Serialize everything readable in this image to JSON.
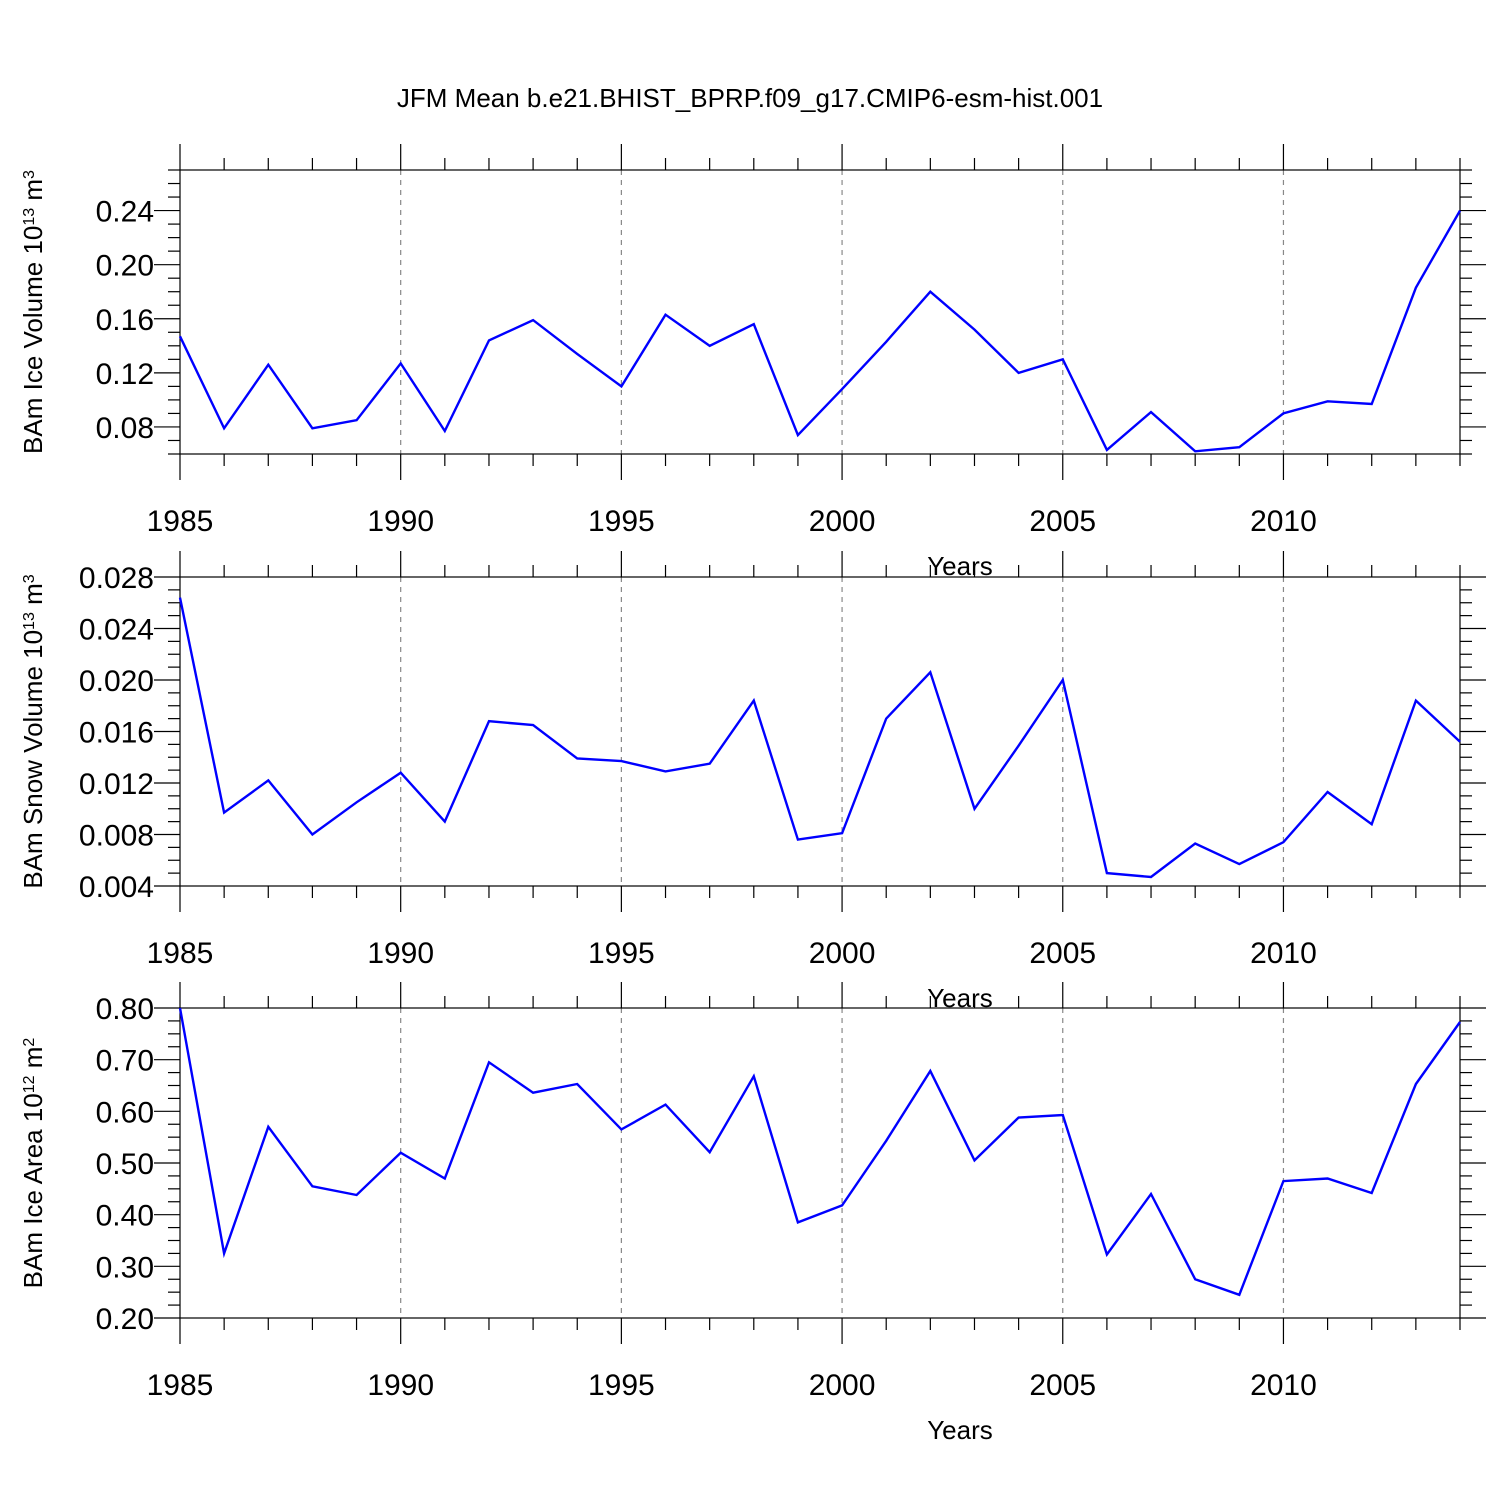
{
  "title": "JFM Mean b.e21.BHIST_BPRP.f09_g17.CMIP6-esm-hist.001",
  "colors": {
    "line": "#0000ff",
    "axis": "#000000",
    "grid": "#888888"
  },
  "chart_data": [
    {
      "type": "line",
      "title": "",
      "xlabel": "Years",
      "ylabel": {
        "pre": "BAm Ice Volume 10",
        "exp": "13",
        "mid": " m",
        "unit_exp": "3"
      },
      "xlim": [
        1985,
        2014
      ],
      "ylim": [
        0.06,
        0.27
      ],
      "xticks": [
        1985,
        1990,
        1995,
        2000,
        2005,
        2010
      ],
      "xtick_labels": [
        "1985",
        "1990",
        "1995",
        "2000",
        "2005",
        "2010"
      ],
      "yticks": [
        0.08,
        0.12,
        0.16,
        0.2,
        0.24
      ],
      "ytick_labels": [
        "0.08",
        "0.12",
        "0.16",
        "0.20",
        "0.24"
      ],
      "x": [
        1985,
        1986,
        1987,
        1988,
        1989,
        1990,
        1991,
        1992,
        1993,
        1994,
        1995,
        1996,
        1997,
        1998,
        1999,
        2000,
        2001,
        2002,
        2003,
        2004,
        2005,
        2006,
        2007,
        2008,
        2009,
        2010,
        2011,
        2012,
        2013,
        2014
      ],
      "series": [
        {
          "name": "BAm Ice Volume",
          "values": [
            0.147,
            0.079,
            0.126,
            0.079,
            0.085,
            0.127,
            0.077,
            0.144,
            0.159,
            0.134,
            0.11,
            0.163,
            0.14,
            0.156,
            0.074,
            0.108,
            0.143,
            0.18,
            0.152,
            0.12,
            0.13,
            0.063,
            0.091,
            0.062,
            0.065,
            0.09,
            0.099,
            0.097,
            0.183,
            0.24
          ]
        }
      ]
    },
    {
      "type": "line",
      "title": "",
      "xlabel": "Years",
      "ylabel": {
        "pre": "BAm Snow Volume 10",
        "exp": "13",
        "mid": " m",
        "unit_exp": "3"
      },
      "xlim": [
        1985,
        2014
      ],
      "ylim": [
        0.004,
        0.028
      ],
      "xticks": [
        1985,
        1990,
        1995,
        2000,
        2005,
        2010
      ],
      "xtick_labels": [
        "1985",
        "1990",
        "1995",
        "2000",
        "2005",
        "2010"
      ],
      "yticks": [
        0.004,
        0.008,
        0.012,
        0.016,
        0.02,
        0.024,
        0.028
      ],
      "ytick_labels": [
        "0.004",
        "0.008",
        "0.012",
        "0.016",
        "0.020",
        "0.024",
        "0.028"
      ],
      "x": [
        1985,
        1986,
        1987,
        1988,
        1989,
        1990,
        1991,
        1992,
        1993,
        1994,
        1995,
        1996,
        1997,
        1998,
        1999,
        2000,
        2001,
        2002,
        2003,
        2004,
        2005,
        2006,
        2007,
        2008,
        2009,
        2010,
        2011,
        2012,
        2013,
        2014
      ],
      "series": [
        {
          "name": "BAm Snow Volume",
          "values": [
            0.0264,
            0.0097,
            0.0122,
            0.008,
            0.0105,
            0.0128,
            0.009,
            0.0168,
            0.0165,
            0.0139,
            0.0137,
            0.0129,
            0.0135,
            0.0184,
            0.0076,
            0.0081,
            0.017,
            0.0206,
            0.01,
            0.0149,
            0.02,
            0.005,
            0.0047,
            0.0073,
            0.0057,
            0.0074,
            0.0113,
            0.0088,
            0.0184,
            0.0152
          ]
        }
      ]
    },
    {
      "type": "line",
      "title": "",
      "xlabel": "Years",
      "ylabel": {
        "pre": "BAm Ice Area 10",
        "exp": "12",
        "mid": " m",
        "unit_exp": "2"
      },
      "xlim": [
        1985,
        2014
      ],
      "ylim": [
        0.2,
        0.8
      ],
      "xticks": [
        1985,
        1990,
        1995,
        2000,
        2005,
        2010
      ],
      "xtick_labels": [
        "1985",
        "1990",
        "1995",
        "2000",
        "2005",
        "2010"
      ],
      "yticks": [
        0.2,
        0.3,
        0.4,
        0.5,
        0.6,
        0.7,
        0.8
      ],
      "ytick_labels": [
        "0.20",
        "0.30",
        "0.40",
        "0.50",
        "0.60",
        "0.70",
        "0.80"
      ],
      "x": [
        1985,
        1986,
        1987,
        1988,
        1989,
        1990,
        1991,
        1992,
        1993,
        1994,
        1995,
        1996,
        1997,
        1998,
        1999,
        2000,
        2001,
        2002,
        2003,
        2004,
        2005,
        2006,
        2007,
        2008,
        2009,
        2010,
        2011,
        2012,
        2013,
        2014
      ],
      "series": [
        {
          "name": "BAm Ice Area",
          "values": [
            0.8,
            0.325,
            0.57,
            0.455,
            0.438,
            0.52,
            0.47,
            0.695,
            0.636,
            0.653,
            0.565,
            0.613,
            0.521,
            0.668,
            0.385,
            0.418,
            0.543,
            0.678,
            0.505,
            0.588,
            0.593,
            0.323,
            0.44,
            0.275,
            0.245,
            0.465,
            0.47,
            0.442,
            0.653,
            0.773
          ]
        }
      ]
    }
  ]
}
